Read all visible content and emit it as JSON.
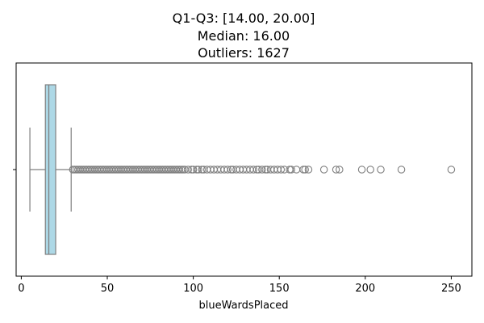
{
  "chart_data": {
    "type": "box",
    "title_lines": [
      "Q1-Q3: [14.00, 20.00]",
      "Median: 16.00",
      "Outliers: 1627"
    ],
    "xlabel": "blueWardsPlaced",
    "ylabel": "",
    "xlim": [
      -3,
      262
    ],
    "xticks": [
      0,
      50,
      100,
      150,
      200,
      250
    ],
    "grid": false,
    "legend": "none",
    "orientation": "horizontal",
    "box": {
      "q1": 14,
      "median": 16,
      "q3": 20,
      "whisker_low": 5,
      "whisker_high": 29
    },
    "outliers_count": 1627,
    "outliers_sparse": [
      95,
      97,
      99,
      100,
      102,
      103,
      105,
      106,
      108,
      110,
      112,
      114,
      116,
      118,
      120,
      122,
      123,
      125,
      127,
      129,
      131,
      133,
      135,
      137,
      138,
      140,
      142,
      143,
      145,
      147,
      149,
      151,
      153,
      156,
      157,
      160,
      164,
      165,
      167,
      176,
      183,
      185,
      198,
      203,
      209,
      221,
      250
    ],
    "colors": {
      "box_fill": "#add8e6",
      "line": "#7f7f7f",
      "outlier_edge": "#7f7f7f"
    }
  }
}
